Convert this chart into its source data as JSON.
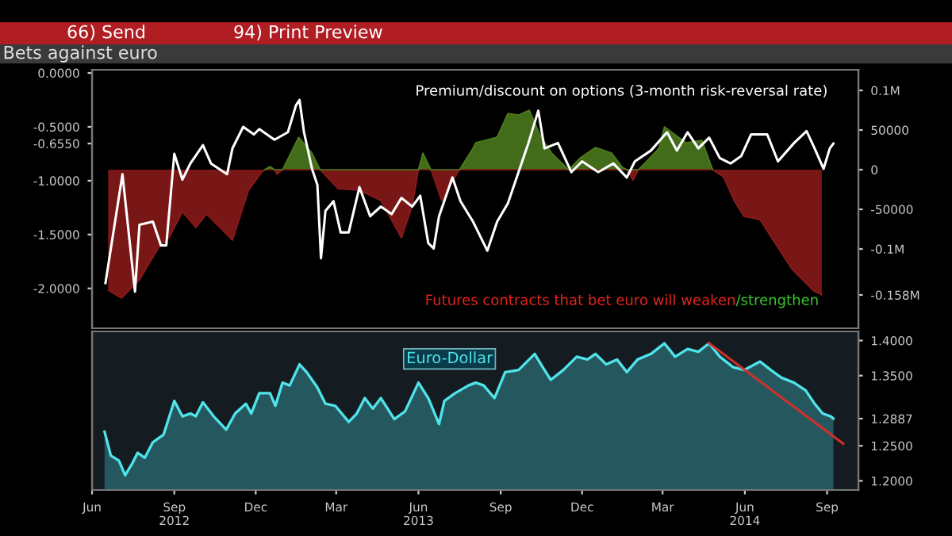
{
  "chart_data": [
    {
      "type": "line",
      "title": "Bets against euro",
      "tick_labels": "y",
      "annotations": [
        "66) Send",
        "94) Print Preview",
        "Premium/discount on options (3-month risk-reversal rate)",
        "Futures contracts that bet euro will weaken",
        "/strengthen"
      ],
      "xlim": [
        "2012-06-01",
        "2014-10-06"
      ],
      "ylim": [
        -2.37,
        0.03
      ],
      "yticks": [
        {
          "value": 0,
          "label": "0.0000"
        },
        {
          "value": -0.5,
          "label": "-0.5000"
        },
        {
          "value": -0.655,
          "label": "-0.6550"
        },
        {
          "value": -1,
          "label": "-1.0000"
        },
        {
          "value": -1.5,
          "label": "-1.5000"
        },
        {
          "value": -2,
          "label": "-2.0000"
        }
      ],
      "y2lim": [
        -200000,
        126000
      ],
      "y2ticks": [
        {
          "value": 100000,
          "label": "0.1M"
        },
        50000,
        0,
        -50000,
        {
          "value": -100000,
          "label": "-0.1M"
        },
        {
          "value": -158000,
          "label": "-0.158M"
        }
      ],
      "series": [
        {
          "type": "area",
          "axis": "y2",
          "color": "#8e1a1a",
          "x": [
            "2012-06-19",
            "2012-07-04",
            "2012-07-24",
            "2012-08-14",
            "2012-08-26",
            "2012-09-10",
            "2012-09-25",
            "2012-10-07",
            "2012-11-05",
            "2012-11-23",
            "2012-12-08",
            "2012-12-11",
            "2012-12-22",
            "2012-12-25",
            "2012-12-31",
            "2013-02-11",
            "2013-03-03",
            "2013-03-27",
            "2013-04-20",
            "2013-05-13",
            "2013-05-25",
            "2013-06-01",
            "2013-06-15",
            "2013-06-27",
            "2013-07-15",
            "2013-07-17",
            "2014-01-20",
            "2014-01-27",
            "2014-02-02",
            "2014-04-26",
            "2014-05-08",
            "2014-05-20",
            "2014-05-31",
            "2014-06-18",
            "2014-07-05",
            "2014-07-24",
            "2014-08-17",
            "2014-08-26"
          ],
          "values": [
            -152000,
            -162000,
            -139000,
            -99000,
            -86000,
            -53000,
            -73000,
            -56000,
            -89000,
            -26000,
            -3000,
            0,
            0,
            -6000,
            0,
            0,
            -24000,
            -26000,
            -39000,
            -86000,
            -46000,
            0,
            0,
            -39000,
            -3000,
            0,
            0,
            -13000,
            0,
            0,
            -9000,
            -39000,
            -59000,
            -63000,
            -93000,
            -126000,
            -153000,
            -158000
          ]
        },
        {
          "type": "area",
          "axis": "y2",
          "color": "#4e7f1e",
          "x": [
            "2012-12-11",
            "2012-12-17",
            "2012-12-22",
            "2012-12-31",
            "2013-01-18",
            "2013-02-02",
            "2013-02-11",
            "2013-06-01",
            "2013-06-06",
            "2013-06-15",
            "2013-07-17",
            "2013-08-01",
            "2013-08-04",
            "2013-08-28",
            "2013-09-09",
            "2013-09-21",
            "2013-10-03",
            "2013-10-16",
            "2013-10-28",
            "2013-11-16",
            "2013-11-28",
            "2013-12-16",
            "2014-01-03",
            "2014-01-15",
            "2014-01-20",
            "2014-02-02",
            "2014-02-08",
            "2014-02-25",
            "2014-03-03",
            "2014-03-15",
            "2014-03-27",
            "2014-04-14",
            "2014-04-26"
          ],
          "values": [
            0,
            4000,
            0,
            0,
            41000,
            21000,
            0,
            0,
            21000,
            0,
            0,
            27000,
            34000,
            41000,
            71000,
            69000,
            75000,
            41000,
            21000,
            0,
            14000,
            28000,
            21000,
            3000,
            0,
            0,
            7000,
            27000,
            54000,
            44000,
            34000,
            37000,
            0
          ]
        },
        {
          "color": "#ffffff",
          "x": [
            "2012-06-16",
            "2012-07-05",
            "2012-07-19",
            "2012-07-24",
            "2012-08-08",
            "2012-08-17",
            "2012-08-23",
            "2012-09-01",
            "2012-09-10",
            "2012-09-19",
            "2012-10-03",
            "2012-10-12",
            "2012-10-30",
            "2012-11-05",
            "2012-11-17",
            "2012-11-29",
            "2012-12-05",
            "2012-12-22",
            "2013-01-06",
            "2013-01-15",
            "2013-01-19",
            "2013-01-24",
            "2013-02-02",
            "2013-02-08",
            "2013-02-12",
            "2013-02-17",
            "2013-02-26",
            "2013-03-06",
            "2013-03-15",
            "2013-03-27",
            "2013-04-08",
            "2013-04-20",
            "2013-05-02",
            "2013-05-13",
            "2013-05-25",
            "2013-06-03",
            "2013-06-12",
            "2013-06-18",
            "2013-06-24",
            "2013-07-09",
            "2013-07-18",
            "2013-08-01",
            "2013-08-04",
            "2013-08-17",
            "2013-08-28",
            "2013-09-09",
            "2013-09-23",
            "2013-10-02",
            "2013-10-13",
            "2013-10-20",
            "2013-11-04",
            "2013-11-19",
            "2013-12-01",
            "2013-12-19",
            "2014-01-05",
            "2014-01-20",
            "2014-01-29",
            "2014-02-16",
            "2014-03-06",
            "2014-03-17",
            "2014-03-29",
            "2014-04-10",
            "2014-04-22",
            "2014-05-04",
            "2014-05-16",
            "2014-05-28",
            "2014-06-08",
            "2014-06-26",
            "2014-07-08",
            "2014-07-26",
            "2014-08-09",
            "2014-08-18",
            "2014-08-28",
            "2014-09-04",
            "2014-09-08"
          ],
          "values": [
            -1.95,
            -0.94,
            -2.03,
            -1.41,
            -1.38,
            -1.6,
            -1.6,
            -0.75,
            -0.99,
            -0.84,
            -0.67,
            -0.84,
            -0.94,
            -0.7,
            -0.5,
            -0.57,
            -0.52,
            -0.62,
            -0.55,
            -0.3,
            -0.25,
            -0.55,
            -0.89,
            -1.04,
            -1.72,
            -1.28,
            -1.19,
            -1.48,
            -1.48,
            -1.06,
            -1.33,
            -1.24,
            -1.31,
            -1.16,
            -1.24,
            -1.14,
            -1.58,
            -1.63,
            -1.33,
            -0.97,
            -1.19,
            -1.38,
            -1.43,
            -1.65,
            -1.38,
            -1.21,
            -0.87,
            -0.65,
            -0.35,
            -0.7,
            -0.65,
            -0.92,
            -0.82,
            -0.92,
            -0.84,
            -0.97,
            -0.82,
            -0.72,
            -0.55,
            -0.72,
            -0.55,
            -0.7,
            -0.6,
            -0.79,
            -0.84,
            -0.77,
            -0.57,
            -0.57,
            -0.82,
            -0.65,
            -0.54,
            -0.7,
            -0.89,
            -0.7,
            -0.655
          ]
        }
      ]
    },
    {
      "type": "line",
      "xlim": [
        "2012-06-01",
        "2014-10-06"
      ],
      "xticks": [
        {
          "value": "2012-06-01",
          "label": "Jun"
        },
        {
          "value": "2012-09-01",
          "label": "Sep\n2012"
        },
        {
          "value": "2012-12-01",
          "label": "Dec"
        },
        {
          "value": "2013-03-01",
          "label": "Mar"
        },
        {
          "value": "2013-06-01",
          "label": "Jun\n2013"
        },
        {
          "value": "2013-09-01",
          "label": "Sep"
        },
        {
          "value": "2013-12-01",
          "label": "Dec"
        },
        {
          "value": "2014-03-01",
          "label": "Mar"
        },
        {
          "value": "2014-06-01",
          "label": "Jun\n2014"
        },
        {
          "value": "2014-09-01",
          "label": "Sep"
        }
      ],
      "y2lim": [
        1.187,
        1.413
      ],
      "y2ticks": [
        {
          "value": 1.4,
          "label": "1.4000"
        },
        {
          "value": 1.35,
          "label": "1.3500"
        },
        {
          "value": 1.2887,
          "label": "1.2887"
        },
        {
          "value": 1.25,
          "label": "1.2500"
        },
        {
          "value": 1.2,
          "label": "1.2000"
        }
      ],
      "series": [
        {
          "type": "area",
          "axis": "y2",
          "name": "Euro-Dollar",
          "color": "#4fe3ea",
          "x": [
            "2012-06-15",
            "2012-06-22",
            "2012-07-01",
            "2012-07-08",
            "2012-07-16",
            "2012-07-22",
            "2012-07-30",
            "2012-08-08",
            "2012-08-20",
            "2012-09-01",
            "2012-09-10",
            "2012-09-19",
            "2012-09-25",
            "2012-10-03",
            "2012-10-15",
            "2012-10-29",
            "2012-11-08",
            "2012-11-20",
            "2012-11-26",
            "2012-12-05",
            "2012-12-17",
            "2012-12-23",
            "2012-12-31",
            "2013-01-08",
            "2013-01-19",
            "2013-01-27",
            "2013-02-08",
            "2013-02-17",
            "2013-02-28",
            "2013-03-15",
            "2013-03-24",
            "2013-04-02",
            "2013-04-11",
            "2013-04-20",
            "2013-05-05",
            "2013-05-17",
            "2013-06-01",
            "2013-06-12",
            "2013-06-24",
            "2013-06-30",
            "2013-07-12",
            "2013-07-27",
            "2013-08-04",
            "2013-08-13",
            "2013-08-25",
            "2013-09-06",
            "2013-09-21",
            "2013-10-09",
            "2013-10-18",
            "2013-10-27",
            "2013-11-10",
            "2013-11-25",
            "2013-12-07",
            "2013-12-16",
            "2013-12-28",
            "2014-01-09",
            "2014-01-20",
            "2014-02-01",
            "2014-02-16",
            "2014-03-03",
            "2014-03-15",
            "2014-03-29",
            "2014-04-10",
            "2014-04-22",
            "2014-05-04",
            "2014-05-19",
            "2014-05-31",
            "2014-06-18",
            "2014-06-30",
            "2014-07-12",
            "2014-07-26",
            "2014-08-08",
            "2014-08-18",
            "2014-08-27",
            "2014-09-05",
            "2014-09-08"
          ],
          "values": [
            1.27,
            1.236,
            1.229,
            1.208,
            1.225,
            1.24,
            1.233,
            1.255,
            1.266,
            1.314,
            1.292,
            1.296,
            1.292,
            1.312,
            1.292,
            1.273,
            1.296,
            1.31,
            1.296,
            1.325,
            1.325,
            1.307,
            1.34,
            1.336,
            1.366,
            1.355,
            1.333,
            1.31,
            1.307,
            1.284,
            1.296,
            1.318,
            1.303,
            1.318,
            1.288,
            1.299,
            1.34,
            1.318,
            1.281,
            1.314,
            1.325,
            1.336,
            1.34,
            1.336,
            1.318,
            1.355,
            1.358,
            1.381,
            1.362,
            1.344,
            1.358,
            1.377,
            1.373,
            1.381,
            1.366,
            1.373,
            1.355,
            1.373,
            1.381,
            1.396,
            1.377,
            1.388,
            1.384,
            1.396,
            1.377,
            1.362,
            1.358,
            1.37,
            1.358,
            1.347,
            1.34,
            1.329,
            1.31,
            1.296,
            1.292,
            1.2887
          ]
        },
        {
          "axis": "y2",
          "color": "#d0302a",
          "x": [
            "2014-04-22",
            "2014-09-19"
          ],
          "values": [
            1.396,
            1.253
          ]
        }
      ]
    }
  ]
}
